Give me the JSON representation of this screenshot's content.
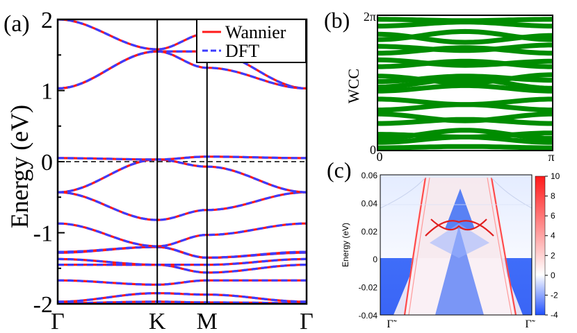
{
  "chart_data": [
    {
      "type": "line",
      "panel_label": "(a)",
      "title": "",
      "xlabel": "",
      "ylabel": "Energy (eV)",
      "x_ticks": [
        "Γ",
        "K",
        "M",
        "Γ"
      ],
      "x": [
        0,
        1,
        1.5,
        2.5
      ],
      "ylim": [
        -2,
        2
      ],
      "y_ticks": [
        "2",
        "1",
        "0",
        "-1",
        "-2"
      ],
      "fermi_level": 0,
      "legend": [
        "Wannier",
        "DFT"
      ],
      "legend_position": "top-right",
      "colors": {
        "wannier": "#ff1a1a",
        "dft": "#3c3cff"
      },
      "series": [
        {
          "name": "band-1",
          "values": [
            -1.99,
            -1.97,
            -1.98,
            -1.99
          ]
        },
        {
          "name": "band-2",
          "values": [
            -1.97,
            -1.85,
            -1.87,
            -1.97
          ]
        },
        {
          "name": "band-3",
          "values": [
            -1.67,
            -1.73,
            -1.67,
            -1.67
          ]
        },
        {
          "name": "band-4",
          "values": [
            -1.45,
            -1.45,
            -1.56,
            -1.45
          ]
        },
        {
          "name": "band-5",
          "values": [
            -1.37,
            -1.45,
            -1.45,
            -1.37
          ]
        },
        {
          "name": "band-6",
          "values": [
            -1.28,
            -1.2,
            -1.35,
            -1.28
          ]
        },
        {
          "name": "band-7",
          "values": [
            -1.27,
            -1.2,
            -1.35,
            -1.27
          ]
        },
        {
          "name": "band-8",
          "values": [
            -0.87,
            -1.19,
            -1.03,
            -0.87
          ]
        },
        {
          "name": "band-9",
          "values": [
            -0.43,
            -0.82,
            -0.68,
            -0.43
          ]
        },
        {
          "name": "band-10",
          "values": [
            -0.43,
            0.03,
            -0.07,
            -0.43
          ]
        },
        {
          "name": "band-11",
          "values": [
            0.05,
            0.03,
            0.07,
            0.05
          ]
        },
        {
          "name": "band-12",
          "values": [
            1.03,
            1.55,
            1.55,
            1.03
          ]
        },
        {
          "name": "band-13",
          "values": [
            1.03,
            1.55,
            1.32,
            1.03
          ]
        },
        {
          "name": "band-14",
          "values": [
            2.0,
            1.58,
            1.8,
            2.0
          ]
        }
      ]
    },
    {
      "type": "line",
      "panel_label": "(b)",
      "title": "",
      "xlabel": "",
      "ylabel": "WCC",
      "x_ticks": [
        "0",
        "π"
      ],
      "y_ticks": [
        "0",
        "2π"
      ],
      "xlim": [
        0,
        3.1416
      ],
      "ylim": [
        0,
        6.2832
      ],
      "color": "#008c00",
      "series": [
        {
          "name": "wcc-lines",
          "values_at_0_to_pi": "approx. 20 Wannier charge center curves spread across 0 to 2π, no net winding"
        }
      ]
    },
    {
      "type": "heatmap",
      "panel_label": "(c)",
      "title": "",
      "xlabel": "",
      "ylabel": "Energy (eV)",
      "x_ticks": [
        "Γ̃",
        "Γ̃"
      ],
      "y_ticks": [
        "0.06",
        "0.04",
        "0.02",
        "0",
        "-0.02",
        "-0.04"
      ],
      "ylim": [
        -0.04,
        0.06
      ],
      "colorbar": {
        "min": -4,
        "max": 10,
        "ticks": [
          "10",
          "8",
          "6",
          "4",
          "2",
          "0",
          "-2",
          "-4"
        ],
        "colors": [
          "#1f4fff",
          "#ffffff",
          "#ff1a1a"
        ]
      }
    }
  ]
}
